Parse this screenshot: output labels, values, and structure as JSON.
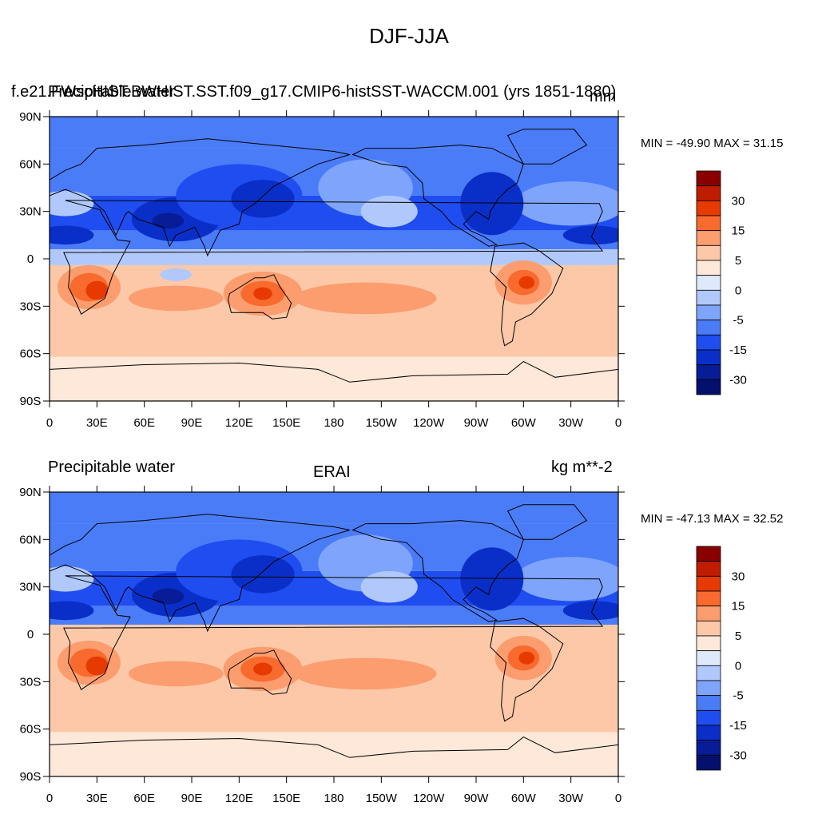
{
  "title": "DJF-JJA",
  "panels": [
    {
      "id": "model",
      "left_label": "Precipitable water",
      "center_label": "f.e21.FWscHIST.BWHIST.SST.f09_g17.CMIP6-histSST-WACCM.001 (yrs 1851-1880)",
      "right_label": "mm",
      "minmax": "MIN = -49.90 MAX =  31.15"
    },
    {
      "id": "obs",
      "left_label": "Precipitable water",
      "center_label": "ERAI",
      "right_label": "kg m**-2",
      "minmax": "MIN = -47.13 MAX =  32.52"
    }
  ],
  "x_ticks": [
    "0",
    "30E",
    "60E",
    "90E",
    "120E",
    "150E",
    "180",
    "150W",
    "120W",
    "90W",
    "60W",
    "30W",
    "0"
  ],
  "y_ticks": [
    "90N",
    "60N",
    "30N",
    "0",
    "30S",
    "60S",
    "90S"
  ],
  "colorbar": {
    "colors": [
      "#8a0000",
      "#c01d00",
      "#e63a00",
      "#f86a2e",
      "#fb9d6e",
      "#fcc8a8",
      "#fee8d9",
      "#deeafc",
      "#b0c8fc",
      "#7ea4fc",
      "#4b7cf8",
      "#1f4df0",
      "#0a2fc8",
      "#071c96",
      "#04106b"
    ],
    "labels": [
      "30",
      "15",
      "5",
      "0",
      "-5",
      "-15",
      "-30"
    ]
  },
  "map_colors": {
    "ocean_deep_blue": "#0a2fc8",
    "mid_blue": "#4b7cf8",
    "light_blue": "#b0c8fc",
    "pale": "#fee8d9",
    "salmon": "#fcc8a8",
    "orange": "#fb9d6e",
    "red": "#e63a00"
  }
}
